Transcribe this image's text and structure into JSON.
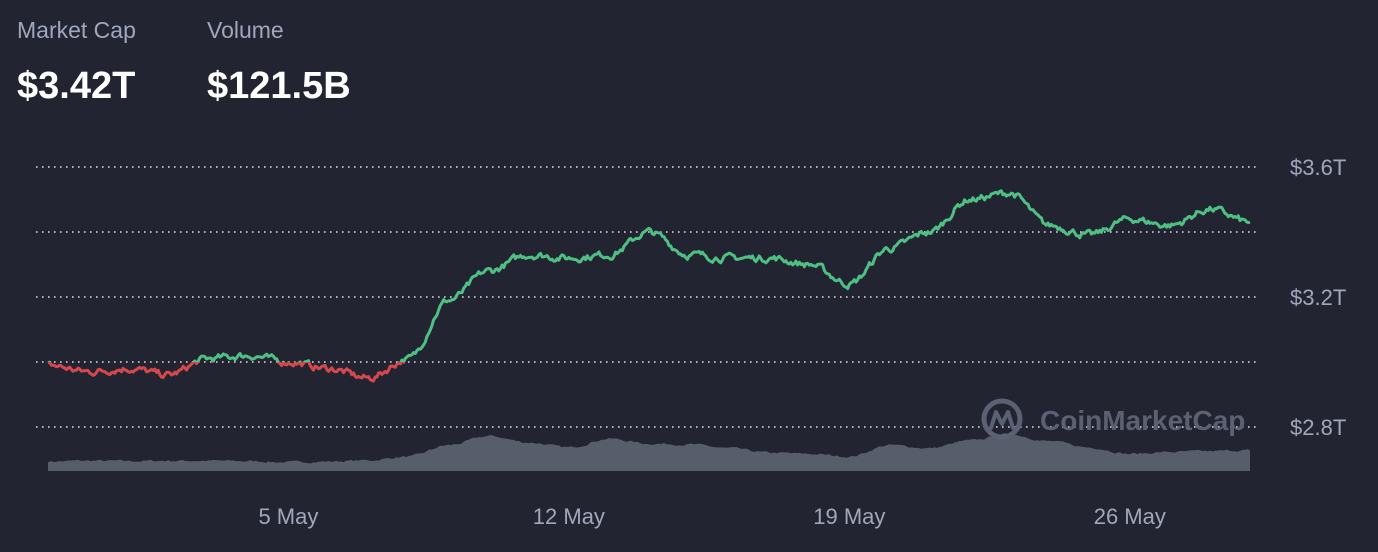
{
  "header": {
    "market_cap_label": "Market Cap",
    "market_cap_value": "$3.42T",
    "volume_label": "Volume",
    "volume_value": "$121.5B"
  },
  "watermark": {
    "text": "CoinMarketCap",
    "icon": "coinmarketcap-logo-icon"
  },
  "colors": {
    "background": "#222531",
    "up": "#16c784",
    "up_line": "#4fbf84",
    "down_line": "#d6484d",
    "volume": "#585d6c",
    "grid": "#ffffff",
    "label": "#a1a7bb"
  },
  "chart_data": {
    "type": "line",
    "title": "",
    "xlabel": "",
    "ylabel": "",
    "y_unit": "USD trillions",
    "ylim": [
      2.8,
      3.6
    ],
    "y_ticks": [
      {
        "value": 3.6,
        "label": "$3.6T"
      },
      {
        "value": 3.2,
        "label": "$3.2T"
      },
      {
        "value": 2.8,
        "label": "$2.8T"
      }
    ],
    "y_grid_values": [
      2.8,
      3.0,
      3.2,
      3.4,
      3.6
    ],
    "grid": "horizontal-dotted",
    "xlim": [
      "2025-04-29",
      "2025-05-29"
    ],
    "x_ticks": [
      {
        "date": "2025-05-05",
        "label": "5 May"
      },
      {
        "date": "2025-05-12",
        "label": "12 May"
      },
      {
        "date": "2025-05-19",
        "label": "19 May"
      },
      {
        "date": "2025-05-26",
        "label": "26 May"
      }
    ],
    "baseline": 3.0,
    "series": [
      {
        "values_role": "market_cap",
        "points": [
          [
            "2025-04-29",
            2.99
          ],
          [
            "2025-04-30",
            2.97
          ],
          [
            "2025-05-01",
            2.98
          ],
          [
            "2025-05-02",
            2.96
          ],
          [
            "2025-05-03",
            3.01
          ],
          [
            "2025-05-04",
            3.02
          ],
          [
            "2025-05-05",
            3.0
          ],
          [
            "2025-05-06",
            2.98
          ],
          [
            "2025-05-07",
            2.95
          ],
          [
            "2025-05-08",
            3.01
          ],
          [
            "2025-05-09",
            3.19
          ],
          [
            "2025-05-10",
            3.28
          ],
          [
            "2025-05-11",
            3.33
          ],
          [
            "2025-05-12",
            3.32
          ],
          [
            "2025-05-13",
            3.33
          ],
          [
            "2025-05-14",
            3.4
          ],
          [
            "2025-05-15",
            3.33
          ],
          [
            "2025-05-16",
            3.32
          ],
          [
            "2025-05-17",
            3.32
          ],
          [
            "2025-05-18",
            3.3
          ],
          [
            "2025-05-19",
            3.24
          ],
          [
            "2025-05-20",
            3.35
          ],
          [
            "2025-05-21",
            3.4
          ],
          [
            "2025-05-22",
            3.5
          ],
          [
            "2025-05-23",
            3.52
          ],
          [
            "2025-05-24",
            3.42
          ],
          [
            "2025-05-25",
            3.39
          ],
          [
            "2025-05-26",
            3.44
          ],
          [
            "2025-05-27",
            3.42
          ],
          [
            "2025-05-28",
            3.47
          ],
          [
            "2025-05-29",
            3.43
          ]
        ]
      }
    ],
    "volume": {
      "unit": "relative",
      "points": [
        [
          "2025-04-29",
          0.25
        ],
        [
          "2025-04-30",
          0.27
        ],
        [
          "2025-05-01",
          0.26
        ],
        [
          "2025-05-02",
          0.27
        ],
        [
          "2025-05-03",
          0.27
        ],
        [
          "2025-05-04",
          0.26
        ],
        [
          "2025-05-05",
          0.23
        ],
        [
          "2025-05-06",
          0.25
        ],
        [
          "2025-05-07",
          0.28
        ],
        [
          "2025-05-08",
          0.38
        ],
        [
          "2025-05-09",
          0.68
        ],
        [
          "2025-05-10",
          0.92
        ],
        [
          "2025-05-11",
          0.75
        ],
        [
          "2025-05-12",
          0.62
        ],
        [
          "2025-05-13",
          0.85
        ],
        [
          "2025-05-14",
          0.72
        ],
        [
          "2025-05-15",
          0.7
        ],
        [
          "2025-05-16",
          0.6
        ],
        [
          "2025-05-17",
          0.48
        ],
        [
          "2025-05-18",
          0.45
        ],
        [
          "2025-05-19",
          0.38
        ],
        [
          "2025-05-20",
          0.68
        ],
        [
          "2025-05-21",
          0.6
        ],
        [
          "2025-05-22",
          0.8
        ],
        [
          "2025-05-23",
          0.97
        ],
        [
          "2025-05-24",
          0.78
        ],
        [
          "2025-05-25",
          0.62
        ],
        [
          "2025-05-26",
          0.45
        ],
        [
          "2025-05-27",
          0.5
        ],
        [
          "2025-05-28",
          0.52
        ],
        [
          "2025-05-29",
          0.55
        ]
      ]
    },
    "legend": "none"
  }
}
